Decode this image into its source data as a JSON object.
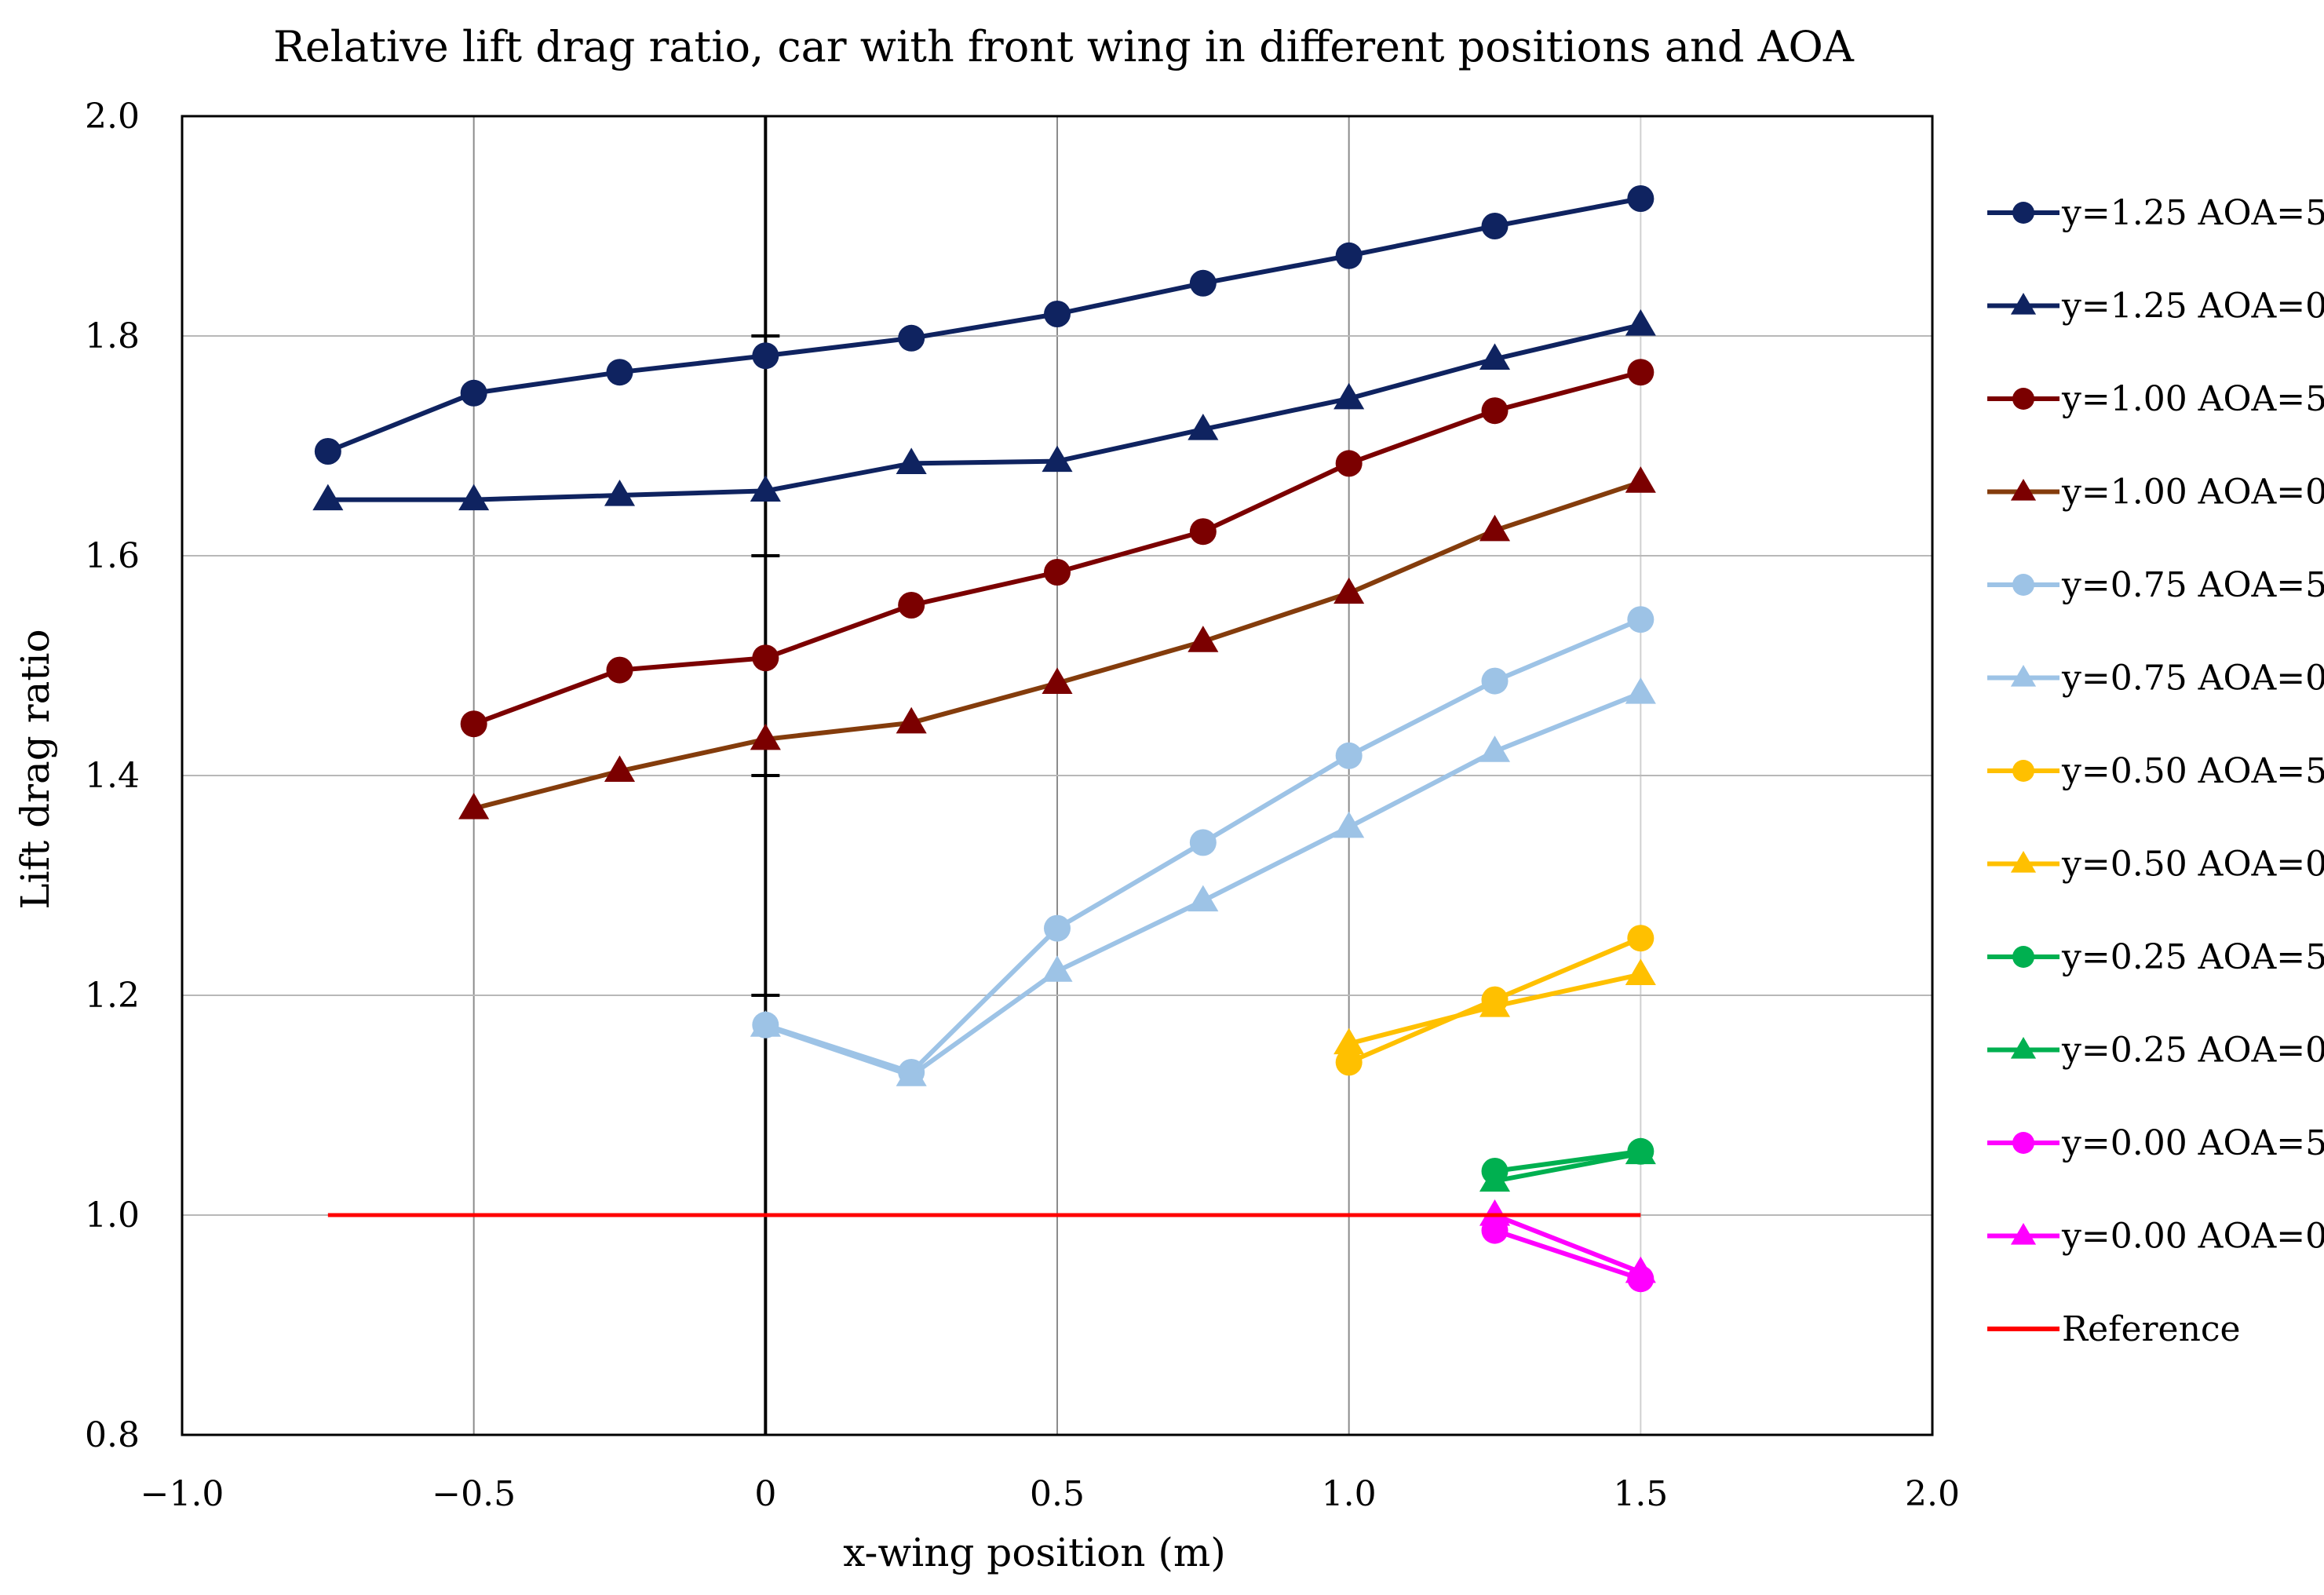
{
  "chart_data": {
    "type": "line",
    "title": "Relative lift drag ratio, car with front wing in different positions and AOA",
    "xlabel": "x-wing position (m)",
    "ylabel": "Lift drag ratio",
    "xlim": [
      -1.0,
      2.0
    ],
    "ylim": [
      0.8,
      2.0
    ],
    "x_ticks": [
      -1.0,
      -0.5,
      0,
      0.5,
      1.0,
      1.5,
      2.0
    ],
    "x_tick_labels": [
      "−1.0",
      "−0.5",
      "0",
      "0.5",
      "1.0",
      "1.5",
      "2.0"
    ],
    "y_ticks": [
      0.8,
      1.0,
      1.2,
      1.4,
      1.6,
      1.8,
      2.0
    ],
    "y_tick_labels": [
      "0.8",
      "1.0",
      "1.2",
      "1.4",
      "1.6",
      "1.8",
      "2.0"
    ],
    "grid": true,
    "legend_position": "right",
    "series": [
      {
        "name": "y=1.25 AOA=5",
        "color": "#0f2360",
        "marker": "circle",
        "x": [
          -0.75,
          -0.5,
          -0.25,
          0,
          0.25,
          0.5,
          0.75,
          1.0,
          1.25,
          1.5
        ],
        "y": [
          1.695,
          1.748,
          1.767,
          1.782,
          1.798,
          1.82,
          1.848,
          1.873,
          1.9,
          1.925
        ]
      },
      {
        "name": "y=1.25 AOA=0",
        "color": "#0f2360",
        "marker": "triangle",
        "x": [
          -0.75,
          -0.5,
          -0.25,
          0,
          0.25,
          0.5,
          0.75,
          1.0,
          1.25,
          1.5
        ],
        "y": [
          1.651,
          1.651,
          1.655,
          1.659,
          1.684,
          1.686,
          1.715,
          1.743,
          1.779,
          1.81
        ]
      },
      {
        "name": "y=1.00 AOA=5",
        "color": "#7b0000",
        "marker": "circle",
        "x": [
          -0.5,
          -0.25,
          0,
          0.25,
          0.5,
          0.75,
          1.0,
          1.25,
          1.5
        ],
        "y": [
          1.447,
          1.496,
          1.507,
          1.555,
          1.585,
          1.622,
          1.684,
          1.732,
          1.767
        ]
      },
      {
        "name": "y=1.00 AOA=0",
        "color": "#843c0c",
        "marker": "triangle",
        "marker_color": "#7b0000",
        "x": [
          -0.5,
          -0.25,
          0,
          0.25,
          0.5,
          0.75,
          1.0,
          1.25,
          1.5
        ],
        "y": [
          1.37,
          1.404,
          1.433,
          1.448,
          1.484,
          1.522,
          1.566,
          1.623,
          1.667
        ]
      },
      {
        "name": "y=0.75 AOA=5",
        "color": "#9dc3e6",
        "marker": "circle",
        "x": [
          0,
          0.25,
          0.5,
          0.75,
          1.0,
          1.25,
          1.5
        ],
        "y": [
          1.173,
          1.13,
          1.261,
          1.339,
          1.418,
          1.486,
          1.542
        ]
      },
      {
        "name": "y=0.75 AOA=0",
        "color": "#9dc3e6",
        "marker": "triangle",
        "x": [
          0,
          0.25,
          0.5,
          0.75,
          1.0,
          1.25,
          1.5
        ],
        "y": [
          1.172,
          1.127,
          1.222,
          1.286,
          1.353,
          1.422,
          1.475
        ]
      },
      {
        "name": "y=0.50 AOA=5",
        "color": "#ffc000",
        "marker": "circle",
        "x": [
          1.0,
          1.25,
          1.5
        ],
        "y": [
          1.139,
          1.196,
          1.252
        ]
      },
      {
        "name": "y=0.50 AOA=0",
        "color": "#ffc000",
        "marker": "triangle",
        "x": [
          1.0,
          1.25,
          1.5
        ],
        "y": [
          1.156,
          1.19,
          1.219
        ]
      },
      {
        "name": "y=0.25 AOA=5",
        "color": "#00b050",
        "marker": "circle",
        "x": [
          1.25,
          1.5
        ],
        "y": [
          1.04,
          1.058
        ]
      },
      {
        "name": "y=0.25 AOA=0",
        "color": "#00b050",
        "marker": "triangle",
        "x": [
          1.25,
          1.5
        ],
        "y": [
          1.031,
          1.056
        ]
      },
      {
        "name": "y=0.00 AOA=5",
        "color": "#ff00ff",
        "marker": "circle",
        "x": [
          1.25,
          1.5
        ],
        "y": [
          0.986,
          0.942
        ]
      },
      {
        "name": "y=0.00 AOA=0",
        "color": "#ff00ff",
        "marker": "triangle",
        "x": [
          1.25,
          1.5
        ],
        "y": [
          1.0,
          0.948
        ]
      },
      {
        "name": "Reference",
        "color": "#ff0000",
        "marker": "none",
        "x": [
          -0.75,
          1.5
        ],
        "y": [
          1.0,
          1.0
        ]
      }
    ]
  }
}
